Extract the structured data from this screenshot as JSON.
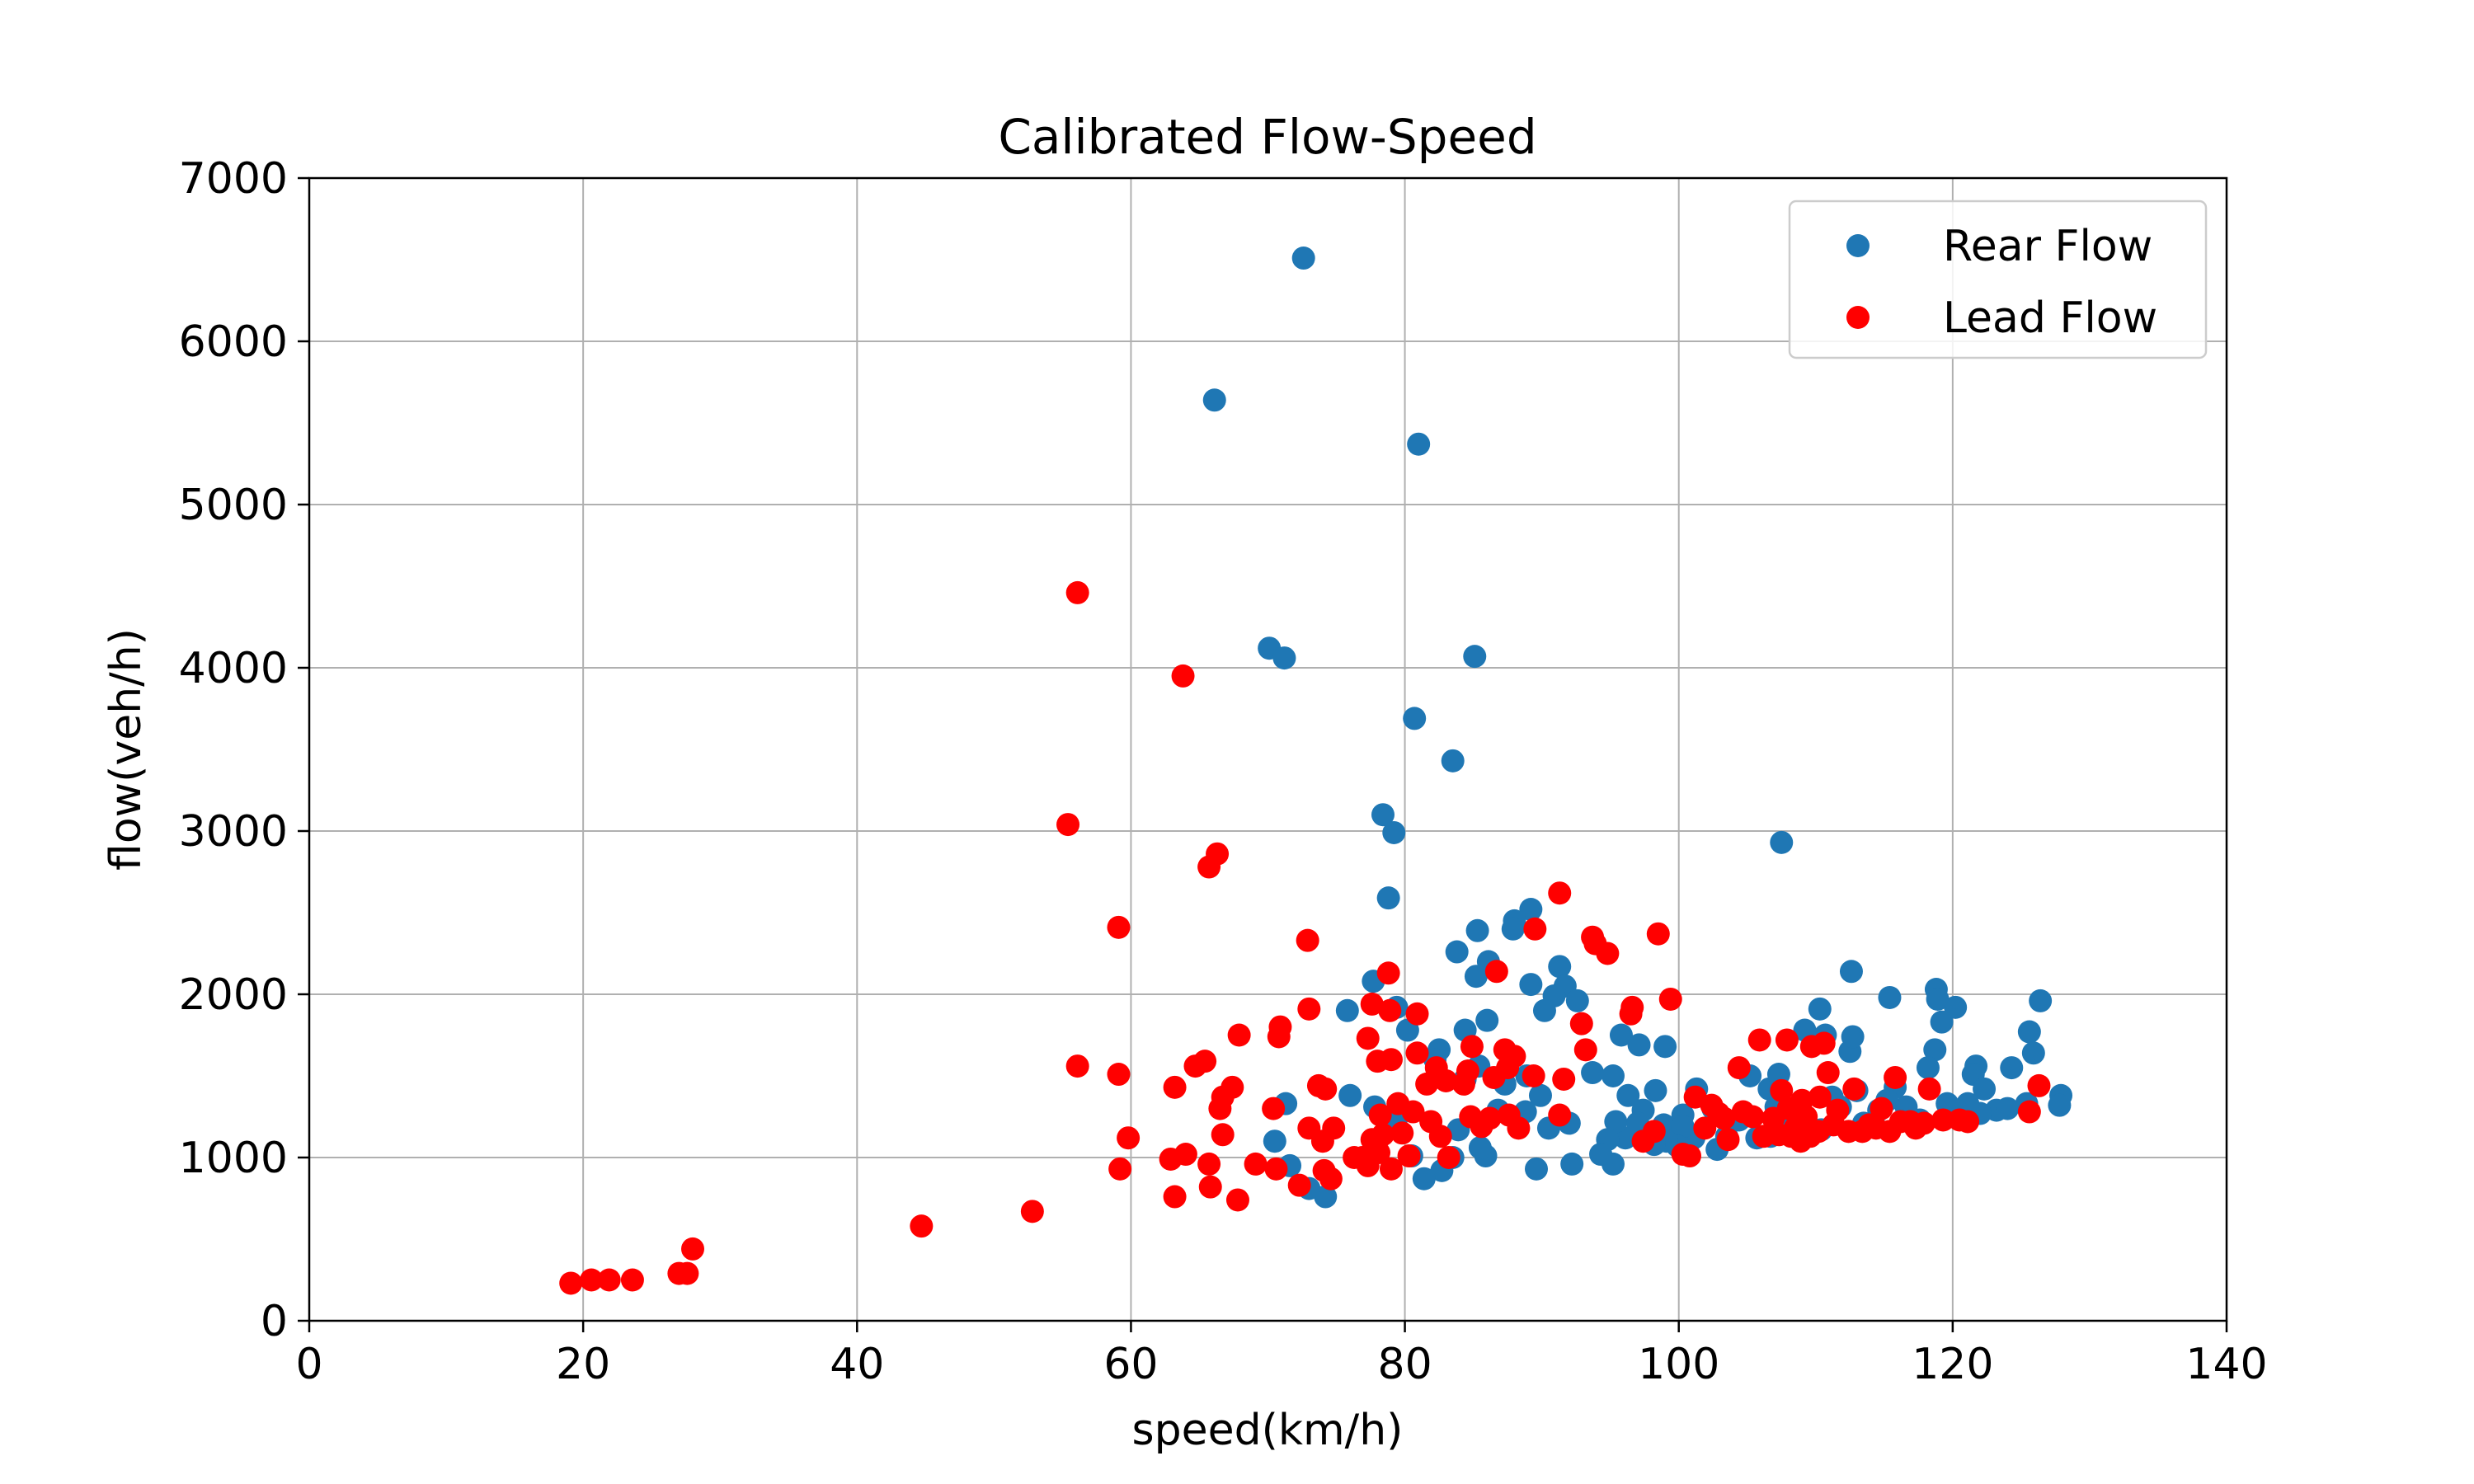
{
  "chart_data": {
    "type": "scatter",
    "title": "Calibrated Flow-Speed",
    "xlabel": "speed(km/h)",
    "ylabel": "flow(veh/h)",
    "xlim": [
      0,
      140
    ],
    "ylim": [
      0,
      7000
    ],
    "xticks": [
      0,
      20,
      40,
      60,
      80,
      100,
      120,
      140
    ],
    "yticks": [
      0,
      1000,
      2000,
      3000,
      4000,
      5000,
      6000,
      7000
    ],
    "grid": true,
    "legend_position": "top-right",
    "series": [
      {
        "name": "Rear Flow",
        "color": "#1f77b4",
        "points": [
          [
            72.6,
            6510
          ],
          [
            66.1,
            5640
          ],
          [
            81.0,
            5370
          ],
          [
            70.1,
            4120
          ],
          [
            71.2,
            4060
          ],
          [
            85.1,
            4070
          ],
          [
            80.7,
            3690
          ],
          [
            83.5,
            3430
          ],
          [
            78.4,
            3100
          ],
          [
            79.2,
            2990
          ],
          [
            78.8,
            2590
          ],
          [
            107.5,
            2930
          ],
          [
            89.2,
            2520
          ],
          [
            88.0,
            2450
          ],
          [
            87.9,
            2400
          ],
          [
            85.3,
            2390
          ],
          [
            83.8,
            2260
          ],
          [
            86.1,
            2200
          ],
          [
            85.2,
            2110
          ],
          [
            77.7,
            2080
          ],
          [
            91.3,
            2170
          ],
          [
            89.2,
            2060
          ],
          [
            91.7,
            2050
          ],
          [
            92.6,
            1960
          ],
          [
            90.9,
            1990
          ],
          [
            90.2,
            1900
          ],
          [
            86.0,
            1840
          ],
          [
            84.4,
            1780
          ],
          [
            80.2,
            1780
          ],
          [
            75.8,
            1900
          ],
          [
            79.4,
            1920
          ],
          [
            82.5,
            1660
          ],
          [
            82.2,
            1600
          ],
          [
            85.4,
            1560
          ],
          [
            84.4,
            1480
          ],
          [
            87.3,
            1450
          ],
          [
            88.9,
            1500
          ],
          [
            93.7,
            1520
          ],
          [
            95.2,
            1500
          ],
          [
            95.8,
            1750
          ],
          [
            97.1,
            1690
          ],
          [
            99.0,
            1680
          ],
          [
            96.3,
            1380
          ],
          [
            98.3,
            1410
          ],
          [
            97.4,
            1290
          ],
          [
            98.9,
            1200
          ],
          [
            100.3,
            1260
          ],
          [
            101.3,
            1420
          ],
          [
            102.5,
            1300
          ],
          [
            105.2,
            1500
          ],
          [
            106.6,
            1420
          ],
          [
            107.3,
            1510
          ],
          [
            109.2,
            1780
          ],
          [
            110.3,
            1910
          ],
          [
            110.7,
            1750
          ],
          [
            112.5,
            1650
          ],
          [
            112.6,
            2140
          ],
          [
            112.7,
            1740
          ],
          [
            115.4,
            1980
          ],
          [
            118.8,
            2030
          ],
          [
            118.9,
            1970
          ],
          [
            119.2,
            1830
          ],
          [
            118.7,
            1660
          ],
          [
            118.2,
            1550
          ],
          [
            120.2,
            1920
          ],
          [
            121.7,
            1560
          ],
          [
            121.5,
            1510
          ],
          [
            122.3,
            1420
          ],
          [
            123.2,
            1290
          ],
          [
            124.3,
            1550
          ],
          [
            125.6,
            1770
          ],
          [
            125.9,
            1640
          ],
          [
            126.4,
            1960
          ],
          [
            127.9,
            1380
          ],
          [
            127.8,
            1320
          ],
          [
            125.4,
            1330
          ],
          [
            124.0,
            1300
          ],
          [
            122.0,
            1270
          ],
          [
            121.1,
            1330
          ],
          [
            119.6,
            1330
          ],
          [
            117.6,
            1230
          ],
          [
            116.6,
            1310
          ],
          [
            115.8,
            1430
          ],
          [
            115.2,
            1350
          ],
          [
            114.6,
            1290
          ],
          [
            113.5,
            1210
          ],
          [
            113.0,
            1410
          ],
          [
            111.8,
            1310
          ],
          [
            111.2,
            1370
          ],
          [
            110.4,
            1170
          ],
          [
            108.7,
            1240
          ],
          [
            107.7,
            1170
          ],
          [
            107.1,
            1310
          ],
          [
            106.7,
            1130
          ],
          [
            105.7,
            1120
          ],
          [
            104.4,
            1230
          ],
          [
            103.5,
            1130
          ],
          [
            102.8,
            1050
          ],
          [
            101.1,
            1120
          ],
          [
            100.3,
            1190
          ],
          [
            99.9,
            1070
          ],
          [
            99.1,
            1100
          ],
          [
            98.2,
            1080
          ],
          [
            96.1,
            1120
          ],
          [
            95.4,
            1220
          ],
          [
            94.8,
            1110
          ],
          [
            95.2,
            960
          ],
          [
            94.3,
            1020
          ],
          [
            92.2,
            960
          ],
          [
            89.6,
            930
          ],
          [
            92.0,
            1210
          ],
          [
            90.5,
            1180
          ],
          [
            89.9,
            1380
          ],
          [
            88.8,
            1280
          ],
          [
            85.9,
            1010
          ],
          [
            85.5,
            1060
          ],
          [
            83.5,
            1000
          ],
          [
            82.7,
            920
          ],
          [
            81.4,
            870
          ],
          [
            80.5,
            1010
          ],
          [
            79.4,
            1240
          ],
          [
            77.8,
            1310
          ],
          [
            76.0,
            1380
          ],
          [
            74.2,
            760
          ],
          [
            73.0,
            810
          ],
          [
            71.6,
            950
          ],
          [
            70.5,
            1100
          ],
          [
            71.3,
            1330
          ],
          [
            83.9,
            1170
          ],
          [
            86.8,
            1290
          ],
          [
            97.0,
            1210
          ]
        ]
      },
      {
        "name": "Lead Flow",
        "color": "#ff0000",
        "points": [
          [
            19.1,
            230
          ],
          [
            20.6,
            250
          ],
          [
            21.9,
            250
          ],
          [
            23.6,
            250
          ],
          [
            27.0,
            290
          ],
          [
            27.6,
            290
          ],
          [
            28.0,
            440
          ],
          [
            44.7,
            580
          ],
          [
            52.8,
            670
          ],
          [
            55.4,
            3040
          ],
          [
            56.1,
            4460
          ],
          [
            56.1,
            1560
          ],
          [
            59.1,
            2410
          ],
          [
            59.1,
            1510
          ],
          [
            59.2,
            930
          ],
          [
            59.8,
            1120
          ],
          [
            62.9,
            990
          ],
          [
            63.2,
            760
          ],
          [
            63.2,
            1430
          ],
          [
            63.8,
            3950
          ],
          [
            64.0,
            1020
          ],
          [
            64.7,
            1560
          ],
          [
            65.4,
            1590
          ],
          [
            65.7,
            2780
          ],
          [
            65.7,
            960
          ],
          [
            65.8,
            820
          ],
          [
            66.3,
            2860
          ],
          [
            66.5,
            1300
          ],
          [
            66.7,
            1370
          ],
          [
            66.7,
            1140
          ],
          [
            67.4,
            1430
          ],
          [
            67.8,
            740
          ],
          [
            67.9,
            1750
          ],
          [
            69.1,
            960
          ],
          [
            70.4,
            1300
          ],
          [
            70.8,
            1740
          ],
          [
            70.9,
            1800
          ],
          [
            70.6,
            930
          ],
          [
            72.3,
            830
          ],
          [
            72.9,
            2330
          ],
          [
            73.0,
            1910
          ],
          [
            73.0,
            1180
          ],
          [
            73.7,
            1440
          ],
          [
            74.2,
            1420
          ],
          [
            74.0,
            1100
          ],
          [
            74.1,
            920
          ],
          [
            74.6,
            870
          ],
          [
            74.8,
            1180
          ],
          [
            76.3,
            1000
          ],
          [
            76.9,
            1000
          ],
          [
            77.3,
            1730
          ],
          [
            77.3,
            950
          ],
          [
            77.6,
            1940
          ],
          [
            77.6,
            1110
          ],
          [
            78.0,
            1590
          ],
          [
            78.1,
            1030
          ],
          [
            78.2,
            1260
          ],
          [
            78.4,
            1140
          ],
          [
            78.8,
            2130
          ],
          [
            78.9,
            1900
          ],
          [
            79.0,
            1600
          ],
          [
            79.0,
            930
          ],
          [
            79.5,
            1330
          ],
          [
            79.8,
            1150
          ],
          [
            80.3,
            1010
          ],
          [
            80.6,
            1280
          ],
          [
            80.9,
            1880
          ],
          [
            80.9,
            1640
          ],
          [
            81.6,
            1450
          ],
          [
            81.9,
            1220
          ],
          [
            82.3,
            1550
          ],
          [
            82.6,
            1130
          ],
          [
            83.0,
            1470
          ],
          [
            83.2,
            1000
          ],
          [
            84.3,
            1450
          ],
          [
            84.6,
            1530
          ],
          [
            84.8,
            1250
          ],
          [
            84.9,
            1680
          ],
          [
            85.6,
            1190
          ],
          [
            86.2,
            1240
          ],
          [
            86.5,
            1490
          ],
          [
            86.7,
            2140
          ],
          [
            87.3,
            1660
          ],
          [
            87.5,
            1550
          ],
          [
            87.6,
            1260
          ],
          [
            88.0,
            1620
          ],
          [
            88.3,
            1180
          ],
          [
            89.4,
            1500
          ],
          [
            89.5,
            2400
          ],
          [
            91.3,
            2620
          ],
          [
            91.3,
            1260
          ],
          [
            91.6,
            1480
          ],
          [
            92.9,
            1820
          ],
          [
            93.2,
            1660
          ],
          [
            93.7,
            2350
          ],
          [
            93.9,
            2310
          ],
          [
            94.8,
            2250
          ],
          [
            96.5,
            1880
          ],
          [
            96.6,
            1920
          ],
          [
            97.4,
            1100
          ],
          [
            98.2,
            1160
          ],
          [
            98.5,
            2370
          ],
          [
            99.4,
            1970
          ],
          [
            100.3,
            1020
          ],
          [
            100.8,
            1010
          ],
          [
            101.2,
            1370
          ],
          [
            101.9,
            1180
          ],
          [
            102.4,
            1320
          ],
          [
            103.3,
            1240
          ],
          [
            103.6,
            1110
          ],
          [
            104.4,
            1550
          ],
          [
            104.7,
            1280
          ],
          [
            105.4,
            1250
          ],
          [
            105.9,
            1720
          ],
          [
            106.2,
            1130
          ],
          [
            106.9,
            1240
          ],
          [
            107.3,
            1140
          ],
          [
            107.5,
            1410
          ],
          [
            107.9,
            1720
          ],
          [
            108.0,
            1300
          ],
          [
            108.2,
            1130
          ],
          [
            108.5,
            1180
          ],
          [
            108.9,
            1100
          ],
          [
            109.0,
            1350
          ],
          [
            109.3,
            1250
          ],
          [
            109.6,
            1130
          ],
          [
            109.7,
            1680
          ],
          [
            110.2,
            1160
          ],
          [
            110.3,
            1370
          ],
          [
            110.6,
            1700
          ],
          [
            110.9,
            1520
          ],
          [
            111.3,
            1200
          ],
          [
            111.6,
            1290
          ],
          [
            112.4,
            1160
          ],
          [
            112.8,
            1420
          ],
          [
            113.4,
            1160
          ],
          [
            113.9,
            1200
          ],
          [
            114.4,
            1180
          ],
          [
            114.8,
            1300
          ],
          [
            115.4,
            1160
          ],
          [
            115.8,
            1490
          ],
          [
            116.2,
            1220
          ],
          [
            116.9,
            1220
          ],
          [
            117.3,
            1180
          ],
          [
            117.9,
            1210
          ],
          [
            118.3,
            1420
          ],
          [
            119.3,
            1230
          ],
          [
            120.5,
            1230
          ],
          [
            121.1,
            1220
          ],
          [
            125.6,
            1280
          ],
          [
            126.3,
            1440
          ],
          [
            102.9,
            1270
          ]
        ]
      }
    ]
  }
}
